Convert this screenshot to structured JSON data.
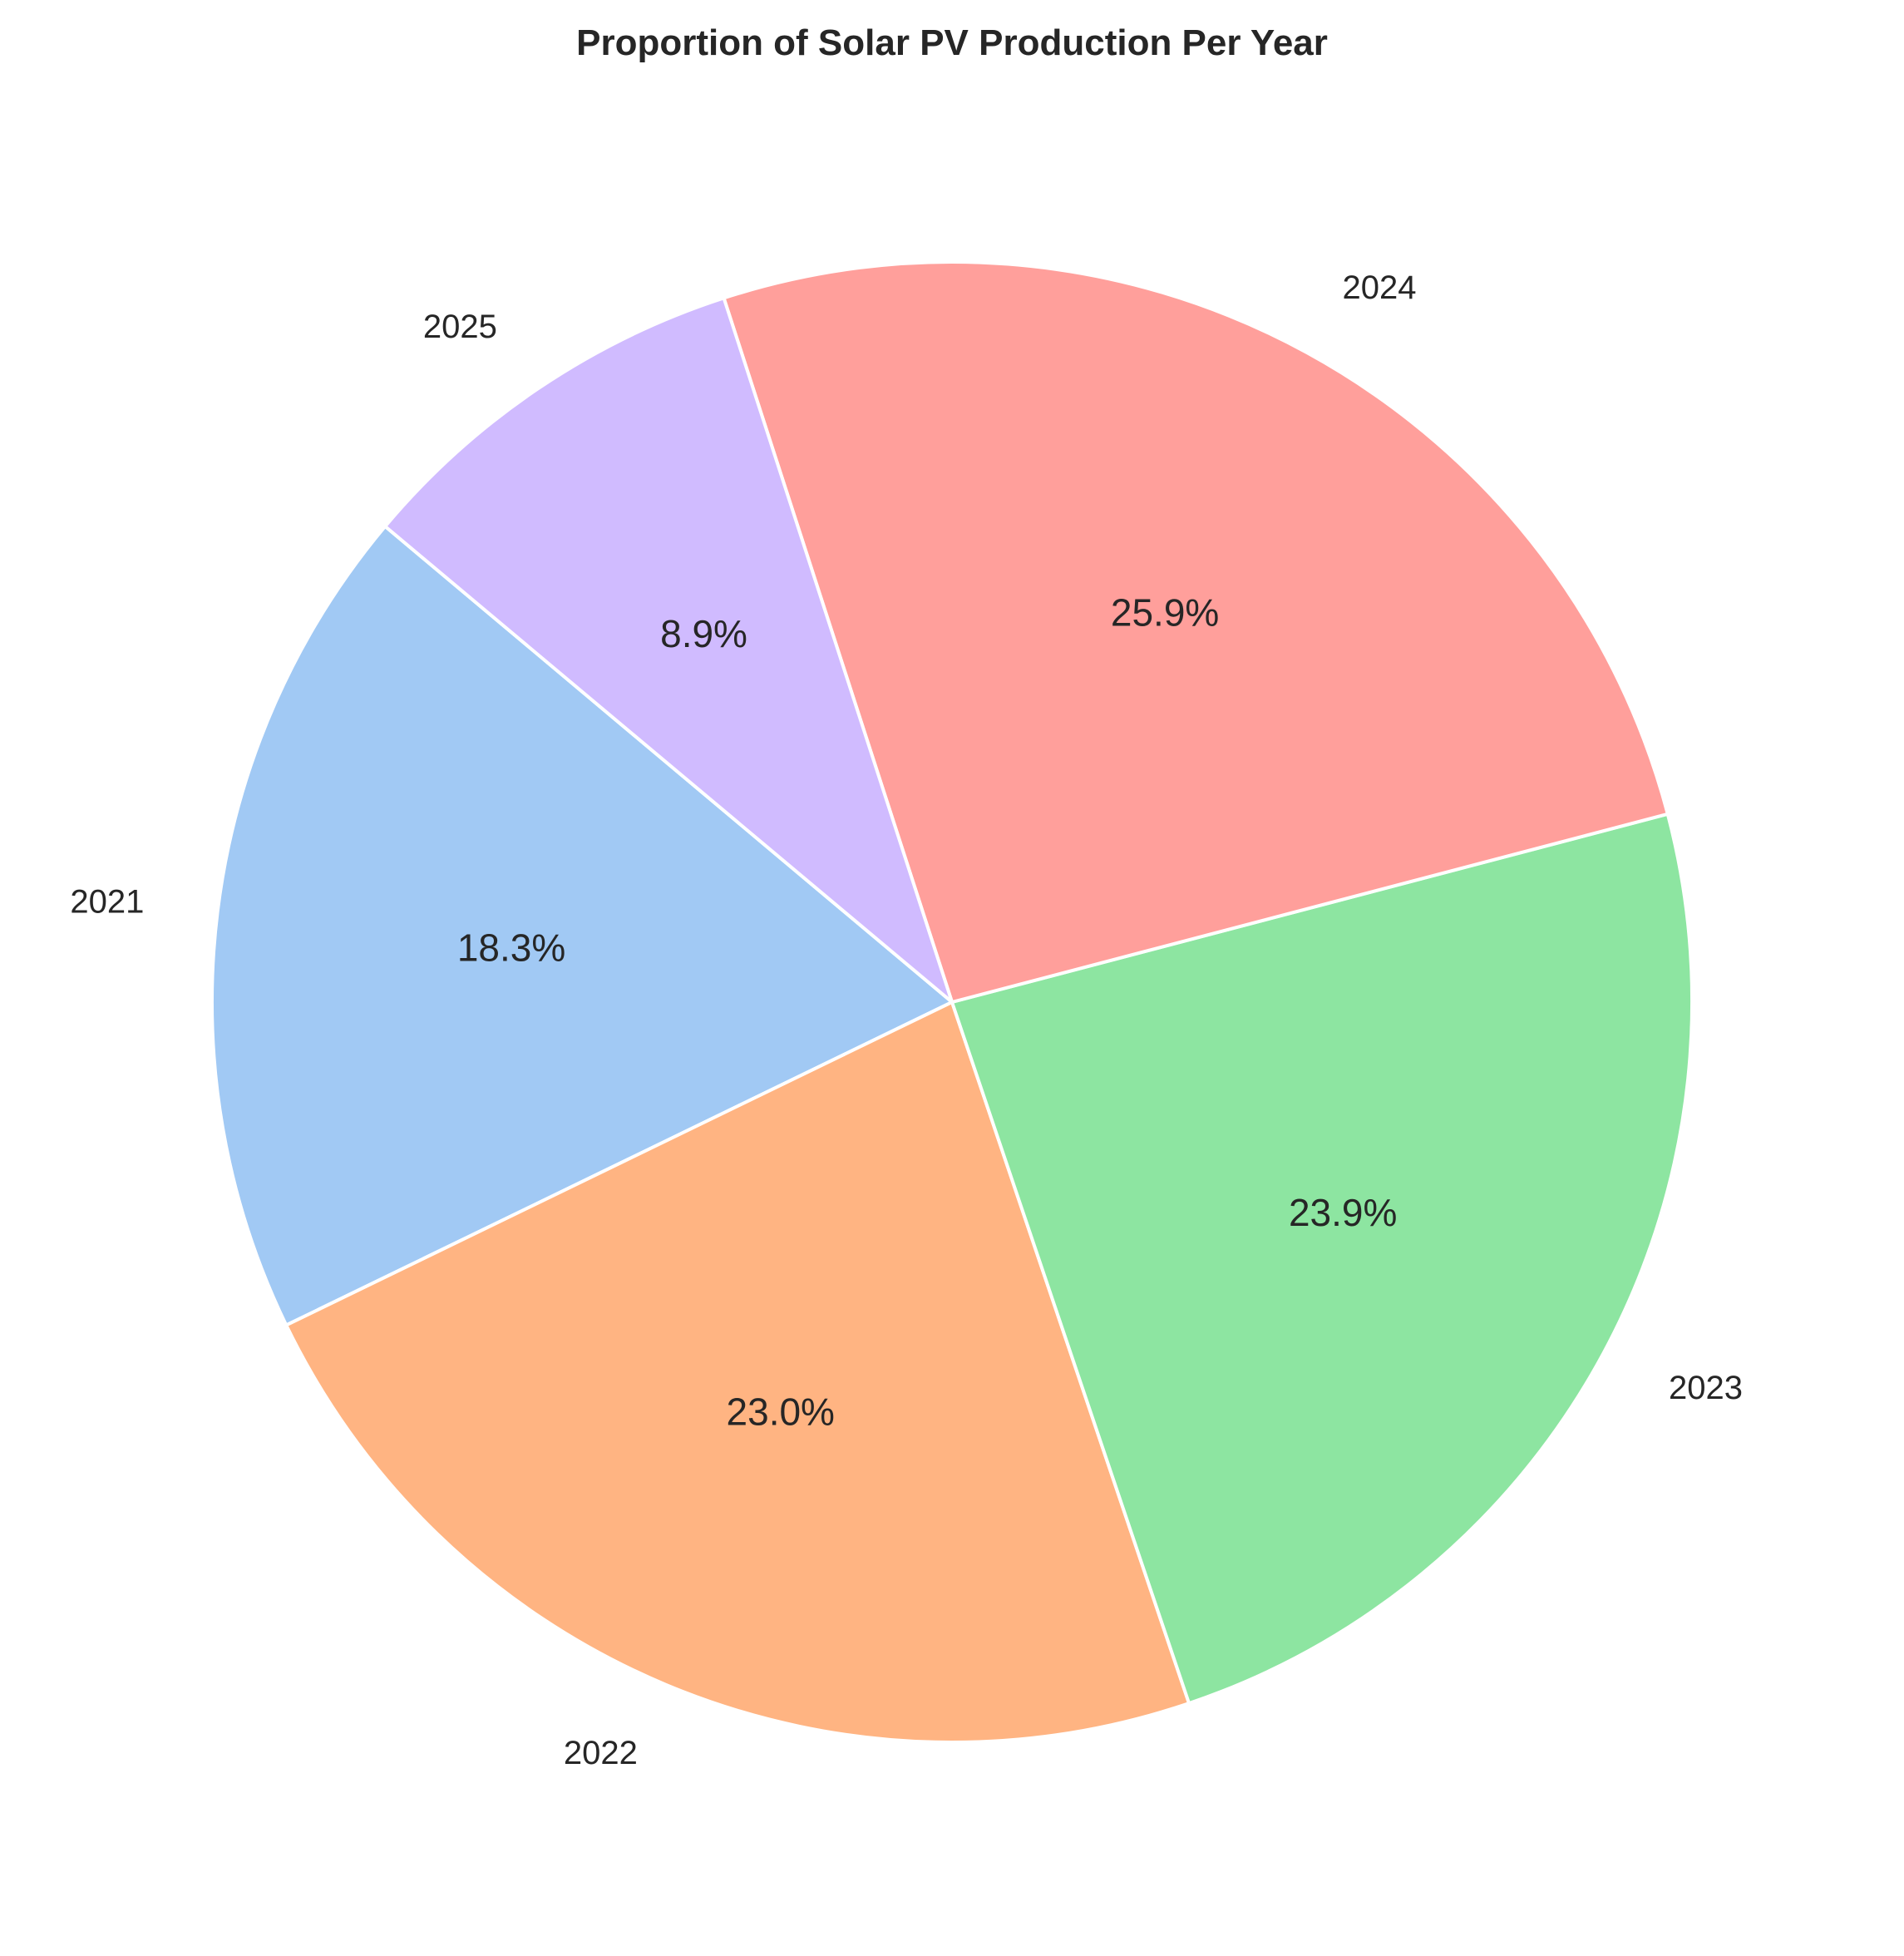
{
  "chart_data": {
    "type": "pie",
    "title": "Proportion of Solar PV Production Per Year",
    "categories": [
      "2021",
      "2022",
      "2023",
      "2024",
      "2025"
    ],
    "values": [
      18.3,
      23.0,
      23.9,
      25.9,
      8.9
    ],
    "value_labels": [
      "18.3%",
      "23.0%",
      "23.9%",
      "25.9%",
      "8.9%"
    ],
    "colors": [
      "#a1c9f4",
      "#ffb482",
      "#8de5a1",
      "#ff9f9b",
      "#d0bbff"
    ],
    "start_angle_deg": 140,
    "direction": "counterclockwise",
    "legend": "none"
  }
}
